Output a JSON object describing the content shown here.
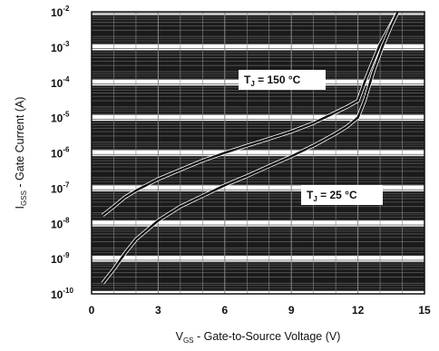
{
  "chart_data": {
    "type": "line",
    "xlabel": {
      "main": "V",
      "sub": "GS",
      "rest": " - Gate-to-Source Voltage (V)"
    },
    "ylabel": {
      "main": "I",
      "sub": "GSS",
      "rest": " - Gate Current (A)"
    },
    "xlim": [
      0,
      15
    ],
    "ylim": [
      1e-10,
      0.01
    ],
    "y_scale": "log",
    "x_ticks": [
      "0",
      "3",
      "6",
      "9",
      "12",
      "15"
    ],
    "y_ticks": [
      {
        "base": "10",
        "exp": "-10"
      },
      {
        "base": "10",
        "exp": "-9"
      },
      {
        "base": "10",
        "exp": "-8"
      },
      {
        "base": "10",
        "exp": "-7"
      },
      {
        "base": "10",
        "exp": "-6"
      },
      {
        "base": "10",
        "exp": "-5"
      },
      {
        "base": "10",
        "exp": "-4"
      },
      {
        "base": "10",
        "exp": "-3"
      },
      {
        "base": "10",
        "exp": "-2"
      }
    ],
    "grid": true,
    "series": [
      {
        "name": "T_J = 150 °C",
        "label_main": "T",
        "label_sub": "J",
        "label_rest": " = 150 °C",
        "points": [
          [
            0.5,
            1.7e-08
          ],
          [
            1,
            3e-08
          ],
          [
            1.5,
            5.5e-08
          ],
          [
            2,
            8.5e-08
          ],
          [
            3,
            1.8e-07
          ],
          [
            4,
            3.3e-07
          ],
          [
            5,
            6e-07
          ],
          [
            6,
            1e-06
          ],
          [
            7,
            1.6e-06
          ],
          [
            8,
            2.5e-06
          ],
          [
            9,
            4e-06
          ],
          [
            10,
            7e-06
          ],
          [
            11,
            1.4e-05
          ],
          [
            11.5,
            2e-05
          ],
          [
            12,
            3e-05
          ],
          [
            12.3,
            0.0001
          ],
          [
            12.6,
            0.0003
          ],
          [
            13,
            0.0012
          ],
          [
            13.5,
            0.0045
          ],
          [
            13.8,
            0.01
          ]
        ]
      },
      {
        "name": "T_J = 25 °C",
        "label_main": "T",
        "label_sub": "J",
        "label_rest": " = 25 °C",
        "points": [
          [
            0.5,
            2e-10
          ],
          [
            1,
            5e-10
          ],
          [
            1.5,
            1.4e-09
          ],
          [
            2,
            3.5e-09
          ],
          [
            3,
            1.2e-08
          ],
          [
            4,
            3e-08
          ],
          [
            5,
            6e-08
          ],
          [
            6,
            1.2e-07
          ],
          [
            7,
            2.2e-07
          ],
          [
            8,
            4.2e-07
          ],
          [
            9,
            8e-07
          ],
          [
            10,
            1.6e-06
          ],
          [
            11,
            3.5e-06
          ],
          [
            11.5,
            5.5e-06
          ],
          [
            12,
            1e-05
          ],
          [
            12.3,
            3e-05
          ],
          [
            12.7,
            0.0002
          ],
          [
            13.1,
            0.001
          ],
          [
            13.5,
            0.004
          ],
          [
            13.8,
            0.01
          ]
        ]
      }
    ],
    "colors": {
      "grid": "#5a5a5a",
      "band": "#1a1a1a",
      "curve": "#111111",
      "label_bg": "#ffffff"
    }
  }
}
